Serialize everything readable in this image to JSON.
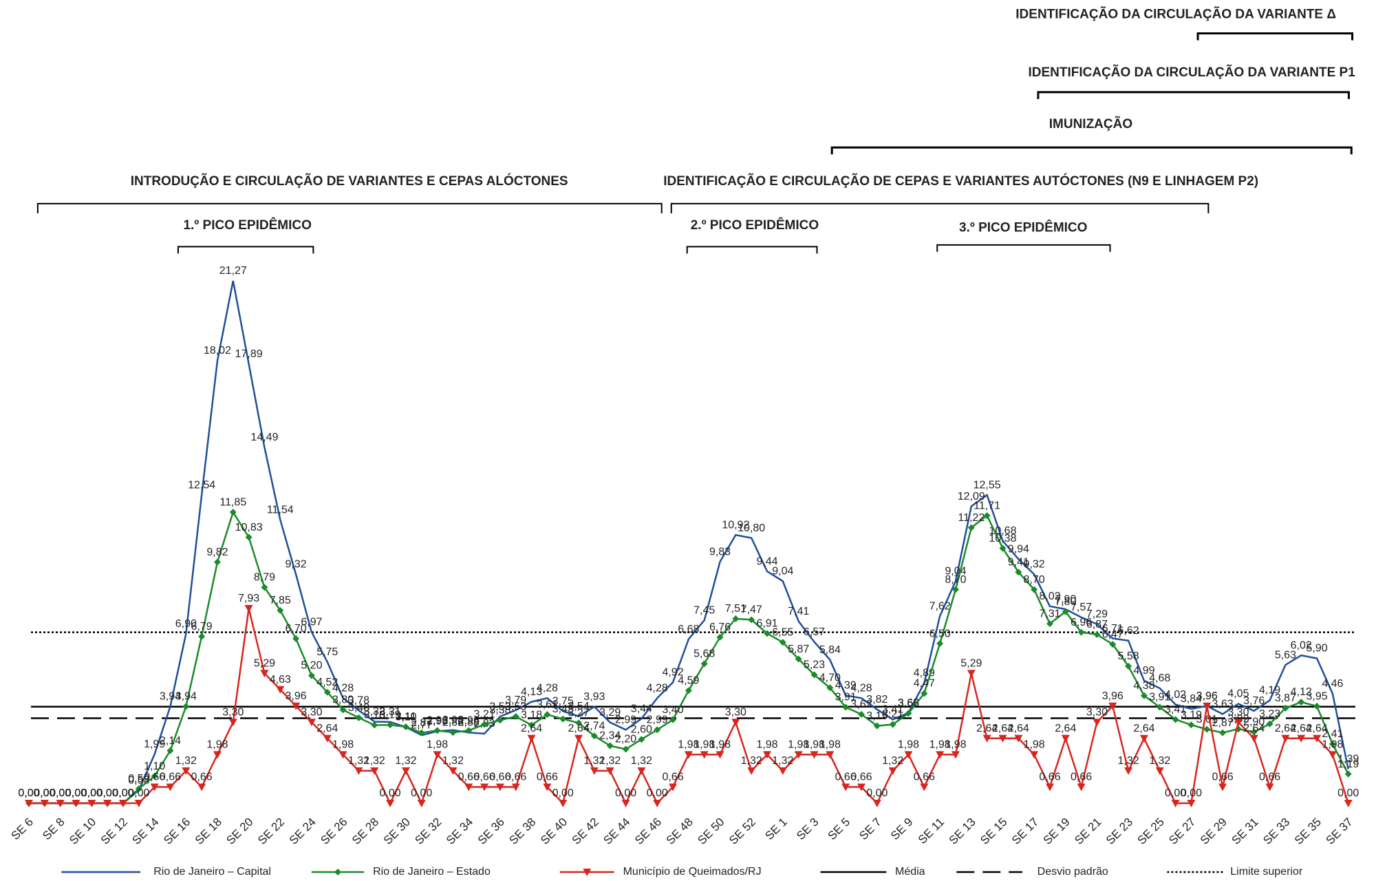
{
  "chart_data": {
    "type": "line",
    "categories": [
      "SE 6",
      null,
      "SE 8",
      null,
      "SE 10",
      null,
      "SE 12",
      null,
      "SE 14",
      null,
      "SE 16",
      null,
      "SE 18",
      null,
      "SE 20",
      null,
      "SE 22",
      null,
      "SE 24",
      null,
      "SE 26",
      null,
      "SE 28",
      null,
      "SE 30",
      null,
      "SE 32",
      null,
      "SE 34",
      null,
      "SE 36",
      null,
      "SE 38",
      null,
      "SE 40",
      null,
      "SE 42",
      null,
      "SE 44",
      null,
      "SE 46",
      null,
      "SE 48",
      null,
      "SE 50",
      null,
      "SE 52",
      null,
      "SE 1",
      null,
      "SE 3",
      null,
      "SE 5",
      null,
      "SE 7",
      null,
      "SE 9",
      null,
      "SE 11",
      null,
      "SE 13",
      null,
      "SE 15",
      null,
      "SE 17",
      null,
      "SE 19",
      null,
      "SE 21",
      null,
      "SE 23",
      null,
      "SE 25",
      null,
      "SE 27",
      null,
      "SE 29",
      null,
      "SE 31",
      null,
      "SE 33",
      null,
      "SE 35",
      null,
      "SE 37"
    ],
    "series": [
      {
        "name": "Rio de Janeiro – Capital",
        "color": "#1f4e9a",
        "marker": "none",
        "values": [
          0,
          0,
          0,
          0,
          0,
          0,
          0,
          0.53,
          1.99,
          3.94,
          6.9,
          12.54,
          18.02,
          21.27,
          17.89,
          14.49,
          11.54,
          9.32,
          6.97,
          5.75,
          4.28,
          3.78,
          3.32,
          3.31,
          3.1,
          2.77,
          2.93,
          2.98,
          2.88,
          2.83,
          3.53,
          3.79,
          4.13,
          4.28,
          3.75,
          3.54,
          3.93,
          3.29,
          2.99,
          3.44,
          4.28,
          4.92,
          6.68,
          7.45,
          9.83,
          10.92,
          10.8,
          9.44,
          9.04,
          7.41,
          6.57,
          5.84,
          4.39,
          4.28,
          3.82,
          3.41,
          3.68,
          4.89,
          7.62,
          9.04,
          12.09,
          12.55,
          10.68,
          9.94,
          9.32,
          8.02,
          7.9,
          7.57,
          7.29,
          6.71,
          6.62,
          4.99,
          4.68,
          4.02,
          3.84,
          3.96,
          3.63,
          4.05,
          3.76,
          4.19,
          5.63,
          6.02,
          5.9,
          4.46,
          1.39
        ],
        "value_labels": [
          "0,00",
          "0,00",
          "0,00",
          "0,00",
          "0,00",
          "0,00",
          "0,00",
          "0,53",
          "1,99",
          "3,94",
          "6,90",
          "12,54",
          "18,02",
          "21,27",
          "17,89",
          "14,49",
          "11,54",
          "9,32",
          "6,97",
          "5,75",
          "4,28",
          "3,78",
          "3,32",
          "3,31",
          "3,10",
          "2,77",
          "2,93",
          "2,98",
          "2,88",
          "2,83",
          "3,53",
          "3,79",
          "4,13",
          "4,28",
          "3,75",
          "3,54",
          "3,93",
          "3,29",
          "2,99",
          "3,44",
          "4,28",
          "4,92",
          "6,68",
          "7,45",
          "9,83",
          "10,92",
          "10,80",
          "9,44",
          "9,04",
          "7,41",
          "6,57",
          "5,84",
          "4,39",
          "4,28",
          "3,82",
          "3,41",
          "3,68",
          "4,89",
          "7,62",
          "9,04",
          "12,09",
          "12,55",
          "10,68",
          "9,94",
          "9,32",
          "8,02",
          "7,90",
          "7,57",
          "7,29",
          "6,71",
          "6,62",
          "4,99",
          "4,68",
          "4,02",
          "3,84",
          "3,96",
          "3,63",
          "4,05",
          "3,76",
          "4,19",
          "5,63",
          "6,02",
          "5,90",
          "4,46",
          "1,39"
        ]
      },
      {
        "name": "Rio de Janeiro – Estado",
        "color": "#1a8a2a",
        "marker": "diamond",
        "values": [
          0,
          0,
          0,
          0,
          0,
          0,
          0,
          0.59,
          1.1,
          2.14,
          3.94,
          6.79,
          9.82,
          11.85,
          10.83,
          8.79,
          7.85,
          6.7,
          5.2,
          4.52,
          3.8,
          3.48,
          3.18,
          3.19,
          3.11,
          2.87,
          2.96,
          2.88,
          2.96,
          3.21,
          3.38,
          3.53,
          3.18,
          3.61,
          3.43,
          3.27,
          2.74,
          2.34,
          2.2,
          2.6,
          2.99,
          3.4,
          4.59,
          5.68,
          6.76,
          7.51,
          7.47,
          6.91,
          6.55,
          5.87,
          5.23,
          4.7,
          3.91,
          3.62,
          3.15,
          3.21,
          3.66,
          4.47,
          6.5,
          8.7,
          11.22,
          11.71,
          10.38,
          9.41,
          8.7,
          7.31,
          7.8,
          6.96,
          6.87,
          6.47,
          5.58,
          4.38,
          3.91,
          3.41,
          3.19,
          3.01,
          2.87,
          3.02,
          2.9,
          3.23,
          3.87,
          4.12,
          3.95,
          2.41,
          1.19
        ],
        "value_labels": [
          "0,00",
          "0,00",
          "0,00",
          "0,00",
          "0,00",
          "0,00",
          "0,00",
          "0,59",
          "1,10",
          "2,14",
          "3,94",
          "6,79",
          "9,82",
          "11,85",
          "10,83",
          "8,79",
          "7,85",
          "6,70",
          "5,20",
          "4,52",
          "3,80",
          "3,48",
          "3,18",
          "3,19",
          "3,11",
          "2,87",
          "2,96",
          "2,88",
          "2,96",
          "3,21",
          "3,38",
          "3,53",
          "3,18",
          "3,61",
          "3,43",
          "3,27",
          "2,74",
          "2,34",
          "2,20",
          "2,60",
          "2,99",
          "3,40",
          "4,59",
          "5,68",
          "6,76",
          "7,51",
          "7,47",
          "6,91",
          "6,55",
          "5,87",
          "5,23",
          "4,70",
          "3,91",
          "3,62",
          "3,15",
          "3,21",
          "3,66",
          "4,47",
          "6,50",
          "8,70",
          "11,22",
          "11,71",
          "10,38",
          "9,41",
          "8,70",
          "7,31",
          "7,80",
          "6,96",
          "6,87",
          "6,47",
          "5,58",
          "4,38",
          "3,91",
          "3,41",
          "3,19",
          "3,01",
          "2,87",
          "3,02",
          "2,90",
          "3,23",
          "3,87",
          "4,12",
          "3,95",
          "2,41",
          "1,19"
        ]
      },
      {
        "name": "Município de Queimados/RJ",
        "color": "#d7261e",
        "marker": "triangle-down",
        "values": [
          0,
          0,
          0,
          0,
          0,
          0,
          0,
          0,
          0.66,
          0.66,
          1.32,
          0.66,
          1.98,
          3.3,
          7.93,
          5.29,
          4.63,
          3.96,
          3.3,
          2.64,
          1.98,
          1.32,
          1.32,
          0,
          1.32,
          0,
          1.98,
          1.32,
          0.66,
          0.66,
          0.66,
          0.66,
          2.64,
          0.66,
          0,
          2.64,
          1.32,
          1.32,
          0,
          1.32,
          0,
          0.66,
          1.98,
          1.98,
          1.98,
          3.3,
          1.32,
          1.98,
          1.32,
          1.98,
          1.98,
          1.98,
          0.66,
          0.66,
          0,
          1.32,
          1.98,
          0.66,
          1.98,
          1.98,
          5.29,
          2.64,
          2.64,
          2.64,
          1.98,
          0.66,
          2.64,
          0.66,
          3.3,
          3.96,
          1.32,
          2.64,
          1.32,
          0,
          0,
          3.96,
          0.66,
          3.3,
          2.64,
          0.66,
          2.64,
          2.64,
          2.64,
          1.98,
          0
        ],
        "value_labels": [
          "0,00",
          "0,00",
          "0,00",
          "0,00",
          "0,00",
          "0,00",
          "0,00",
          "0,00",
          "0,66",
          "0,66",
          "1,32",
          "0,66",
          "1,98",
          "3,30",
          "7,93",
          "5,29",
          "4,63",
          "3,96",
          "3,30",
          "2,64",
          "1,98",
          "1,32",
          "1,32",
          "0,00",
          "1,32",
          "0,00",
          "1,98",
          "1,32",
          "0,66",
          "0,66",
          "0,66",
          "0,66",
          "2,64",
          "0,66",
          "0,00",
          "2,64",
          "1,32",
          "1,32",
          "0,00",
          "1,32",
          "0,00",
          "0,66",
          "1,98",
          "1,98",
          "1,98",
          "3,30",
          "1,32",
          "1,98",
          "1,32",
          "1,98",
          "1,98",
          "1,98",
          "0,66",
          "0,66",
          "0,00",
          "1,32",
          "1,98",
          "0,66",
          "1,98",
          "1,98",
          "5,29",
          "2,64",
          "2,64",
          "2,64",
          "1,98",
          "0,66",
          "2,64",
          "0,66",
          "3,30",
          "3,96",
          "1,32",
          "2,64",
          "1,32",
          "0,00",
          "0,00",
          "3,96",
          "0,66",
          "3,30",
          "2,64",
          "0,66",
          "2,64",
          "2,64",
          "2,64",
          "1,98",
          "0,00"
        ]
      }
    ],
    "reference_lines": [
      {
        "name": "Média",
        "value": 3.93,
        "style": "solid"
      },
      {
        "name": "Desvio padrão",
        "value": 3.46,
        "style": "dashed"
      },
      {
        "name": "Limite superior",
        "value": 6.96,
        "style": "dotted"
      }
    ],
    "annotations": [
      "IDENTIFICAÇÃO DA CIRCULAÇÃO DA VARIANTE  Δ",
      "IDENTIFICAÇÃO DA CIRCULAÇÃO DA VARIANTE P1",
      "IMUNIZAÇÃO",
      "INTRODUÇÃO E CIRCULAÇÃO DE VARIANTES E CEPAS ALÓCTONES",
      "IDENTIFICAÇÃO E CIRCULAÇÃO DE CEPAS E VARIANTES AUTÓCTONES  (N9 E LINHAGEM P2)",
      "1.º PICO EPIDÊMICO",
      "2.º PICO EPIDÊMICO",
      "3.º PICO EPIDÊMICO"
    ],
    "ylim": [
      0,
      23
    ]
  }
}
